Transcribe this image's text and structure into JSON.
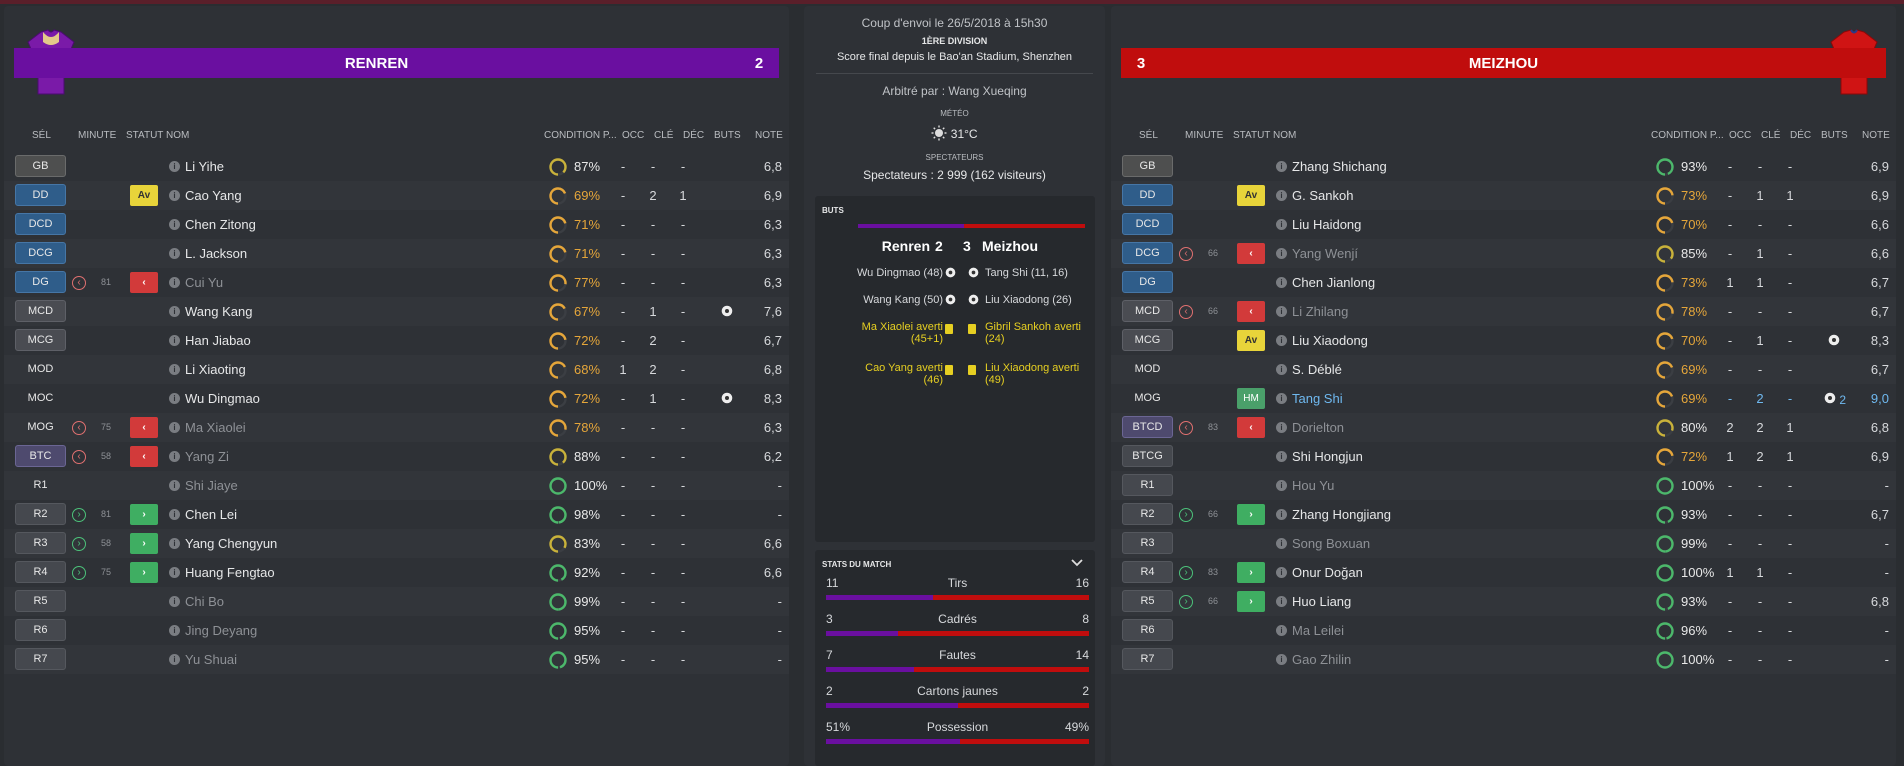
{
  "colors": {
    "home": "#6a0fa0",
    "away": "#c00d0d"
  },
  "home": {
    "name": "RENREN",
    "score": "2",
    "shirt_icon": "home-shirt-icon"
  },
  "away": {
    "name": "MEIZHOU",
    "score": "3",
    "shirt_icon": "away-shirt-icon"
  },
  "headers": {
    "sel": "SÉL",
    "minute": "MINUTE",
    "statut": "STATUT",
    "nom": "NOM",
    "condition": "CONDITION P...",
    "occ": "OCC",
    "cle": "CLÉ",
    "dec": "DÉC",
    "buts": "BUTS",
    "note": "NOTE"
  },
  "home_players": [
    {
      "pos": "GB",
      "pcls": "gk",
      "min_icon": "",
      "min": "",
      "stat": "",
      "stat_cls": "",
      "name": "Li Yihe",
      "ncls": "",
      "cond": 87,
      "cond_txt": "87%",
      "occ": "-",
      "cle": "-",
      "dec": "-",
      "buts": "",
      "note": "6,8"
    },
    {
      "pos": "DD",
      "pcls": "df",
      "min_icon": "",
      "min": "",
      "stat": "Av",
      "stat_cls": "av",
      "name": "Cao Yang",
      "ncls": "",
      "cond": 69,
      "cond_txt": "69%",
      "occ": "-",
      "cle": "2",
      "dec": "1",
      "buts": "",
      "note": "6,9"
    },
    {
      "pos": "DCD",
      "pcls": "df",
      "min_icon": "",
      "min": "",
      "stat": "",
      "stat_cls": "",
      "name": "Chen Zitong",
      "ncls": "",
      "cond": 71,
      "cond_txt": "71%",
      "occ": "-",
      "cle": "-",
      "dec": "-",
      "buts": "",
      "note": "6,3"
    },
    {
      "pos": "DCG",
      "pcls": "df",
      "min_icon": "",
      "min": "",
      "stat": "",
      "stat_cls": "",
      "name": "L. Jackson",
      "ncls": "",
      "cond": 71,
      "cond_txt": "71%",
      "occ": "-",
      "cle": "-",
      "dec": "-",
      "buts": "",
      "note": "6,3"
    },
    {
      "pos": "DG",
      "pcls": "df",
      "min_icon": "out",
      "min": "81",
      "stat": "‹",
      "stat_cls": "out",
      "name": "Cui Yu",
      "ncls": "dim",
      "cond": 77,
      "cond_txt": "77%",
      "occ": "-",
      "cle": "-",
      "dec": "-",
      "buts": "",
      "note": "6,3"
    },
    {
      "pos": "MCD",
      "pcls": "mf",
      "min_icon": "",
      "min": "",
      "stat": "",
      "stat_cls": "",
      "name": "Wang Kang",
      "ncls": "",
      "cond": 67,
      "cond_txt": "67%",
      "occ": "-",
      "cle": "1",
      "dec": "-",
      "buts": "ball",
      "note": "7,6"
    },
    {
      "pos": "MCG",
      "pcls": "mf",
      "min_icon": "",
      "min": "",
      "stat": "",
      "stat_cls": "",
      "name": "Han Jiabao",
      "ncls": "",
      "cond": 72,
      "cond_txt": "72%",
      "occ": "-",
      "cle": "2",
      "dec": "-",
      "buts": "",
      "note": "6,7"
    },
    {
      "pos": "MOD",
      "pcls": "mo",
      "min_icon": "",
      "min": "",
      "stat": "",
      "stat_cls": "",
      "name": "Li Xiaoting",
      "ncls": "",
      "cond": 68,
      "cond_txt": "68%",
      "occ": "1",
      "cle": "2",
      "dec": "-",
      "buts": "",
      "note": "6,8"
    },
    {
      "pos": "MOC",
      "pcls": "mo",
      "min_icon": "",
      "min": "",
      "stat": "",
      "stat_cls": "",
      "name": "Wu Dingmao",
      "ncls": "",
      "cond": 72,
      "cond_txt": "72%",
      "occ": "-",
      "cle": "1",
      "dec": "-",
      "buts": "ball",
      "note": "8,3"
    },
    {
      "pos": "MOG",
      "pcls": "mo",
      "min_icon": "out",
      "min": "75",
      "stat": "‹",
      "stat_cls": "out",
      "name": "Ma Xiaolei",
      "ncls": "dim",
      "cond": 78,
      "cond_txt": "78%",
      "occ": "-",
      "cle": "-",
      "dec": "-",
      "buts": "",
      "note": "6,3"
    },
    {
      "pos": "BTC",
      "pcls": "st",
      "min_icon": "out",
      "min": "58",
      "stat": "‹",
      "stat_cls": "out",
      "name": "Yang Zi",
      "ncls": "dim",
      "cond": 88,
      "cond_txt": "88%",
      "occ": "-",
      "cle": "-",
      "dec": "-",
      "buts": "",
      "note": "6,2"
    },
    {
      "pos": "R1",
      "pcls": "mo",
      "min_icon": "",
      "min": "",
      "stat": "",
      "stat_cls": "",
      "name": "Shi Jiaye",
      "ncls": "dim",
      "cond": 100,
      "cond_txt": "100%",
      "occ": "-",
      "cle": "-",
      "dec": "-",
      "buts": "",
      "note": "-"
    },
    {
      "pos": "R2",
      "pcls": "sub",
      "min_icon": "in",
      "min": "81",
      "stat": "›",
      "stat_cls": "in",
      "name": "Chen Lei",
      "ncls": "",
      "cond": 98,
      "cond_txt": "98%",
      "occ": "-",
      "cle": "-",
      "dec": "-",
      "buts": "",
      "note": "-"
    },
    {
      "pos": "R3",
      "pcls": "sub",
      "min_icon": "in",
      "min": "58",
      "stat": "›",
      "stat_cls": "in",
      "name": "Yang Chengyun",
      "ncls": "",
      "cond": 83,
      "cond_txt": "83%",
      "occ": "-",
      "cle": "-",
      "dec": "-",
      "buts": "",
      "note": "6,6"
    },
    {
      "pos": "R4",
      "pcls": "sub",
      "min_icon": "in",
      "min": "75",
      "stat": "›",
      "stat_cls": "in",
      "name": "Huang Fengtao",
      "ncls": "",
      "cond": 92,
      "cond_txt": "92%",
      "occ": "-",
      "cle": "-",
      "dec": "-",
      "buts": "",
      "note": "6,6"
    },
    {
      "pos": "R5",
      "pcls": "sub",
      "min_icon": "",
      "min": "",
      "stat": "",
      "stat_cls": "",
      "name": "Chi Bo",
      "ncls": "dim",
      "cond": 99,
      "cond_txt": "99%",
      "occ": "-",
      "cle": "-",
      "dec": "-",
      "buts": "",
      "note": "-"
    },
    {
      "pos": "R6",
      "pcls": "sub",
      "min_icon": "",
      "min": "",
      "stat": "",
      "stat_cls": "",
      "name": "Jing Deyang",
      "ncls": "dim",
      "cond": 95,
      "cond_txt": "95%",
      "occ": "-",
      "cle": "-",
      "dec": "-",
      "buts": "",
      "note": "-"
    },
    {
      "pos": "R7",
      "pcls": "sub",
      "min_icon": "",
      "min": "",
      "stat": "",
      "stat_cls": "",
      "name": "Yu Shuai",
      "ncls": "dim",
      "cond": 95,
      "cond_txt": "95%",
      "occ": "-",
      "cle": "-",
      "dec": "-",
      "buts": "",
      "note": "-"
    }
  ],
  "away_players": [
    {
      "pos": "GB",
      "pcls": "gk",
      "min_icon": "",
      "min": "",
      "stat": "",
      "stat_cls": "",
      "name": "Zhang Shichang",
      "ncls": "",
      "cond": 93,
      "cond_txt": "93%",
      "occ": "-",
      "cle": "-",
      "dec": "-",
      "buts": "",
      "note": "6,9"
    },
    {
      "pos": "DD",
      "pcls": "df",
      "min_icon": "",
      "min": "",
      "stat": "Av",
      "stat_cls": "av",
      "name": "G. Sankoh",
      "ncls": "",
      "cond": 73,
      "cond_txt": "73%",
      "occ": "-",
      "cle": "1",
      "dec": "1",
      "buts": "",
      "note": "6,9"
    },
    {
      "pos": "DCD",
      "pcls": "df",
      "min_icon": "",
      "min": "",
      "stat": "",
      "stat_cls": "",
      "name": "Liu Haidong",
      "ncls": "",
      "cond": 70,
      "cond_txt": "70%",
      "occ": "-",
      "cle": "-",
      "dec": "-",
      "buts": "",
      "note": "6,6"
    },
    {
      "pos": "DCG",
      "pcls": "df",
      "min_icon": "out",
      "min": "66",
      "stat": "‹",
      "stat_cls": "out",
      "name": "Yang Wenjí",
      "ncls": "dim",
      "cond": 85,
      "cond_txt": "85%",
      "occ": "-",
      "cle": "1",
      "dec": "-",
      "buts": "",
      "note": "6,6"
    },
    {
      "pos": "DG",
      "pcls": "df",
      "min_icon": "",
      "min": "",
      "stat": "",
      "stat_cls": "",
      "name": "Chen Jianlong",
      "ncls": "",
      "cond": 73,
      "cond_txt": "73%",
      "occ": "1",
      "cle": "1",
      "dec": "-",
      "buts": "",
      "note": "6,7"
    },
    {
      "pos": "MCD",
      "pcls": "mf",
      "min_icon": "out",
      "min": "66",
      "stat": "‹",
      "stat_cls": "out",
      "name": "Li Zhilang",
      "ncls": "dim",
      "cond": 78,
      "cond_txt": "78%",
      "occ": "-",
      "cle": "-",
      "dec": "-",
      "buts": "",
      "note": "6,7"
    },
    {
      "pos": "MCG",
      "pcls": "mf",
      "min_icon": "",
      "min": "",
      "stat": "Av",
      "stat_cls": "av",
      "name": "Liu Xiaodong",
      "ncls": "",
      "cond": 70,
      "cond_txt": "70%",
      "occ": "-",
      "cle": "1",
      "dec": "-",
      "buts": "ball",
      "note": "8,3"
    },
    {
      "pos": "MOD",
      "pcls": "mo",
      "min_icon": "",
      "min": "",
      "stat": "",
      "stat_cls": "",
      "name": "S. Déblé",
      "ncls": "",
      "cond": 69,
      "cond_txt": "69%",
      "occ": "-",
      "cle": "-",
      "dec": "-",
      "buts": "",
      "note": "6,7"
    },
    {
      "pos": "MOG",
      "pcls": "mo",
      "min_icon": "",
      "min": "",
      "stat": "HM",
      "stat_cls": "hm",
      "name": "Tang Shi",
      "ncls": "star",
      "cond": 69,
      "cond_txt": "69%",
      "occ": "-",
      "cle": "2",
      "dec": "-",
      "buts": "ball2",
      "note": "9,0"
    },
    {
      "pos": "BTCD",
      "pcls": "st",
      "min_icon": "out",
      "min": "83",
      "stat": "‹",
      "stat_cls": "out",
      "name": "Dorielton",
      "ncls": "dim",
      "cond": 80,
      "cond_txt": "80%",
      "occ": "2",
      "cle": "2",
      "dec": "1",
      "buts": "",
      "note": "6,8"
    },
    {
      "pos": "BTCG",
      "pcls": "sub",
      "min_icon": "",
      "min": "",
      "stat": "",
      "stat_cls": "",
      "name": "Shi Hongjun",
      "ncls": "",
      "cond": 72,
      "cond_txt": "72%",
      "occ": "1",
      "cle": "2",
      "dec": "1",
      "buts": "",
      "note": "6,9"
    },
    {
      "pos": "R1",
      "pcls": "sub",
      "min_icon": "",
      "min": "",
      "stat": "",
      "stat_cls": "",
      "name": "Hou Yu",
      "ncls": "dim",
      "cond": 100,
      "cond_txt": "100%",
      "occ": "-",
      "cle": "-",
      "dec": "-",
      "buts": "",
      "note": "-"
    },
    {
      "pos": "R2",
      "pcls": "sub",
      "min_icon": "in",
      "min": "66",
      "stat": "›",
      "stat_cls": "in",
      "name": "Zhang Hongjiang",
      "ncls": "",
      "cond": 93,
      "cond_txt": "93%",
      "occ": "-",
      "cle": "-",
      "dec": "-",
      "buts": "",
      "note": "6,7"
    },
    {
      "pos": "R3",
      "pcls": "sub",
      "min_icon": "",
      "min": "",
      "stat": "",
      "stat_cls": "",
      "name": "Song Boxuan",
      "ncls": "dim",
      "cond": 99,
      "cond_txt": "99%",
      "occ": "-",
      "cle": "-",
      "dec": "-",
      "buts": "",
      "note": "-"
    },
    {
      "pos": "R4",
      "pcls": "sub",
      "min_icon": "in",
      "min": "83",
      "stat": "›",
      "stat_cls": "in",
      "name": "Onur Doğan",
      "ncls": "",
      "cond": 100,
      "cond_txt": "100%",
      "occ": "1",
      "cle": "1",
      "dec": "-",
      "buts": "",
      "note": "-"
    },
    {
      "pos": "R5",
      "pcls": "sub",
      "min_icon": "in",
      "min": "66",
      "stat": "›",
      "stat_cls": "in",
      "name": "Huo Liang",
      "ncls": "",
      "cond": 93,
      "cond_txt": "93%",
      "occ": "-",
      "cle": "-",
      "dec": "-",
      "buts": "",
      "note": "6,8"
    },
    {
      "pos": "R6",
      "pcls": "sub",
      "min_icon": "",
      "min": "",
      "stat": "",
      "stat_cls": "",
      "name": "Ma Leilei",
      "ncls": "dim",
      "cond": 96,
      "cond_txt": "96%",
      "occ": "-",
      "cle": "-",
      "dec": "-",
      "buts": "",
      "note": "-"
    },
    {
      "pos": "R7",
      "pcls": "sub",
      "min_icon": "",
      "min": "",
      "stat": "",
      "stat_cls": "",
      "name": "Gao Zhilin",
      "ncls": "dim",
      "cond": 100,
      "cond_txt": "100%",
      "occ": "-",
      "cle": "-",
      "dec": "-",
      "buts": "",
      "note": "-"
    }
  ],
  "match": {
    "kickoff": "Coup d'envoi le 26/5/2018 à 15h30",
    "division": "1ÈRE DIVISION",
    "result": "Score final depuis le Bao'an Stadium, Shenzhen",
    "referee": "Arbitré par : Wang Xueqing",
    "weather_label": "MÉTÉO",
    "weather": "31°C",
    "weather_icon": "sun-icon",
    "spectators_label": "SPECTATEURS",
    "spectators": "Spectateurs : 2 999 (162 visiteurs)"
  },
  "goals": {
    "label": "BUTS",
    "home_team": "Renren",
    "home_score": "2",
    "away_score": "3",
    "away_team": "Meizhou",
    "home_events": [
      "Wu Dingmao (48)",
      "Wang Kang (50)",
      "Ma Xiaolei averti (45+1)",
      "Cao Yang averti (46)"
    ],
    "away_events": [
      "Tang Shi (11, 16)",
      "Liu Xiaodong (26)",
      "Gibril Sankoh averti (24)",
      "Liu Xiaodong averti (49)"
    ]
  },
  "stats": {
    "label": "STATS DU MATCH",
    "rows": [
      {
        "label": "Tirs",
        "home": "11",
        "away": "16",
        "hv": 11,
        "av": 16
      },
      {
        "label": "Cadrés",
        "home": "3",
        "away": "8",
        "hv": 3,
        "av": 8
      },
      {
        "label": "Fautes",
        "home": "7",
        "away": "14",
        "hv": 7,
        "av": 14
      },
      {
        "label": "Cartons jaunes",
        "home": "2",
        "away": "2",
        "hv": 2,
        "av": 2
      },
      {
        "label": "Possession",
        "home": "51%",
        "away": "49%",
        "hv": 51,
        "av": 49
      }
    ]
  }
}
